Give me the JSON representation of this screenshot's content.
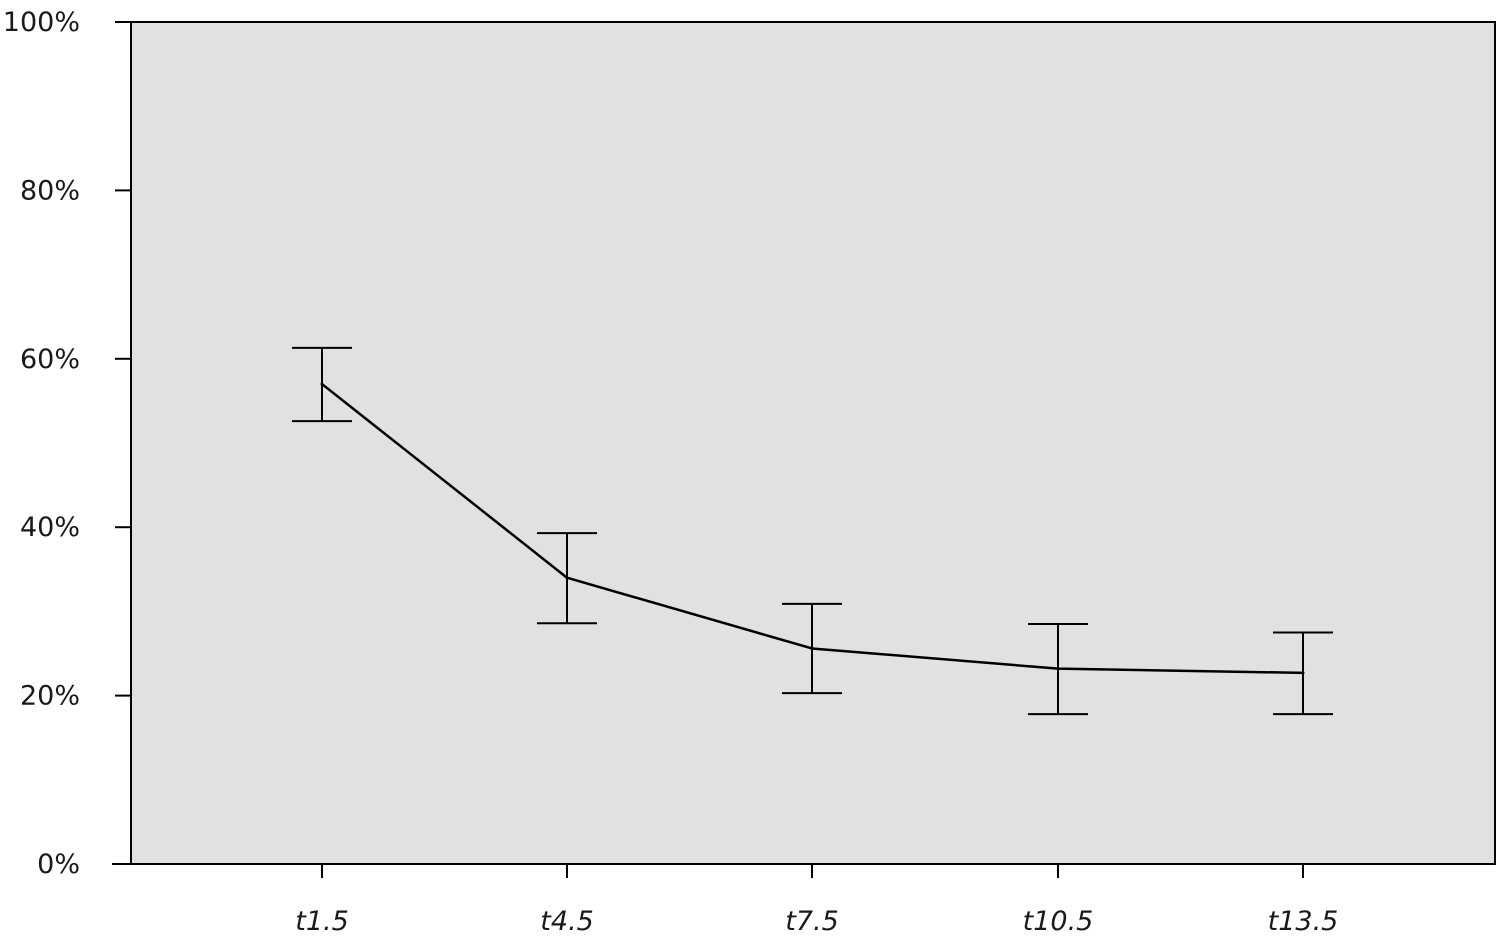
{
  "chart_data": {
    "type": "line",
    "title": "",
    "xlabel": "",
    "ylabel": "",
    "categories": [
      "t1.5",
      "t4.5",
      "t7.5",
      "t10.5",
      "t13.5"
    ],
    "values": [
      57,
      34,
      25.6,
      23.2,
      22.7
    ],
    "error_bars": [
      {
        "low": 52.6,
        "high": 61.3
      },
      {
        "low": 28.6,
        "high": 39.3
      },
      {
        "low": 20.3,
        "high": 30.9
      },
      {
        "low": 17.8,
        "high": 28.5
      },
      {
        "low": 17.8,
        "high": 27.5
      }
    ],
    "ylim": [
      0,
      100
    ],
    "y_ticks": [
      0,
      20,
      40,
      60,
      80,
      100
    ],
    "y_tick_labels": [
      "0%",
      "20%",
      "40%",
      "60%",
      "80%",
      "100%"
    ],
    "grid": false,
    "legend": "none",
    "colors": {
      "plot_background": "#e1e1e1",
      "line": "#000000",
      "axis": "#000000"
    }
  }
}
